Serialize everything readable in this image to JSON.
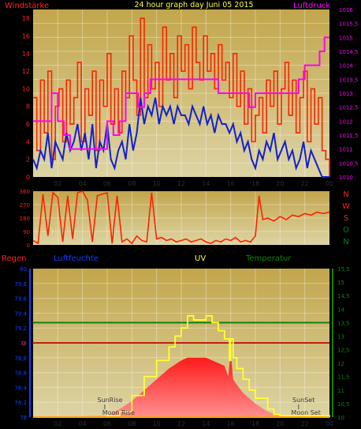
{
  "colors": {
    "background": "#000000",
    "panel_top": "#c8b060",
    "panel_bottom": "#ddd6a6",
    "wind": "#ff2200",
    "wind_avg": "#1020d0",
    "pressure": "#ff00ff",
    "red_label": "#ff2020",
    "uv": "#ffff30",
    "temperature": "#108010",
    "humidity": "#1040ff",
    "rain_line": "#c02010",
    "radiation_fill": "#ff1010",
    "text_dark": "#303030"
  },
  "chart_data": [
    {
      "id": "wind-pressure",
      "type": "line",
      "title": "24 hour graph day   Juni 05 2015",
      "left_label": "Windstärke",
      "right_label": "Luftdruck",
      "x_ticks": [
        "02",
        "04",
        "06",
        "08",
        "10",
        "12",
        "14",
        "16",
        "18",
        "20",
        "22",
        "00"
      ],
      "y_left_ticks": [
        "0",
        "2",
        "4",
        "6",
        "8",
        "10",
        "12",
        "14",
        "16",
        "18"
      ],
      "y_left_range": [
        0,
        19
      ],
      "y_right_ticks": [
        "1010",
        "1010,5",
        "1011",
        "1011,5",
        "1012",
        "1012,5",
        "1013",
        "1013,5",
        "1014",
        "1014,5",
        "1015",
        "1015,5",
        "1016"
      ],
      "y_right_range": [
        1010,
        1016
      ],
      "x_range": [
        0,
        24
      ],
      "series": [
        {
          "role": "gust",
          "color": "#ff2200",
          "x": [
            0.0,
            0.3,
            0.6,
            0.9,
            1.2,
            1.5,
            1.8,
            2.1,
            2.4,
            2.7,
            3.0,
            3.3,
            3.6,
            3.9,
            4.2,
            4.5,
            4.8,
            5.1,
            5.4,
            5.7,
            6.0,
            6.3,
            6.6,
            6.9,
            7.2,
            7.5,
            7.8,
            8.1,
            8.4,
            8.7,
            9.0,
            9.3,
            9.6,
            9.9,
            10.2,
            10.5,
            10.8,
            11.1,
            11.4,
            11.7,
            12.0,
            12.3,
            12.6,
            12.9,
            13.2,
            13.5,
            13.8,
            14.1,
            14.4,
            14.7,
            15.0,
            15.3,
            15.6,
            15.9,
            16.2,
            16.5,
            16.8,
            17.1,
            17.4,
            17.7,
            18.0,
            18.3,
            18.6,
            18.9,
            19.2,
            19.5,
            19.8,
            20.1,
            20.4,
            20.7,
            21.0,
            21.3,
            21.6,
            21.9,
            22.2,
            22.5,
            22.8,
            23.1,
            23.4,
            23.7,
            24.0
          ],
          "y": [
            9,
            3,
            11,
            5,
            12,
            2,
            8,
            10,
            4,
            11,
            6,
            9,
            13,
            4,
            10,
            7,
            12,
            3,
            11,
            8,
            14,
            6,
            10,
            5,
            12,
            9,
            16,
            11,
            7,
            18,
            9,
            15,
            10,
            13,
            8,
            17,
            11,
            14,
            9,
            16,
            12,
            15,
            10,
            17,
            13,
            11,
            16,
            12,
            14,
            10,
            15,
            11,
            13,
            9,
            14,
            8,
            12,
            6,
            10,
            4,
            7,
            9,
            5,
            11,
            8,
            12,
            6,
            10,
            13,
            7,
            11,
            5,
            9,
            12,
            4,
            10,
            6,
            9,
            3,
            2,
            0
          ]
        },
        {
          "role": "average",
          "color": "#1020d0",
          "x": [
            0.0,
            0.3,
            0.6,
            0.9,
            1.2,
            1.5,
            1.8,
            2.1,
            2.4,
            2.7,
            3.0,
            3.3,
            3.6,
            3.9,
            4.2,
            4.5,
            4.8,
            5.1,
            5.4,
            5.7,
            6.0,
            6.3,
            6.6,
            6.9,
            7.2,
            7.5,
            7.8,
            8.1,
            8.4,
            8.7,
            9.0,
            9.3,
            9.6,
            9.9,
            10.2,
            10.5,
            10.8,
            11.1,
            11.4,
            11.7,
            12.0,
            12.3,
            12.6,
            12.9,
            13.2,
            13.5,
            13.8,
            14.1,
            14.4,
            14.7,
            15.0,
            15.3,
            15.6,
            15.9,
            16.2,
            16.5,
            16.8,
            17.1,
            17.4,
            17.7,
            18.0,
            18.3,
            18.6,
            18.9,
            19.2,
            19.5,
            19.8,
            20.1,
            20.4,
            20.7,
            21.0,
            21.3,
            21.6,
            21.9,
            22.2,
            22.5,
            22.8,
            23.1,
            23.4,
            23.7,
            24.0
          ],
          "y": [
            2,
            1,
            3,
            2,
            5,
            1,
            4,
            3,
            2,
            5,
            3,
            4,
            6,
            3,
            5,
            2,
            6,
            1,
            4,
            3,
            6,
            2,
            1,
            3,
            4,
            2,
            6,
            3,
            5,
            9,
            6,
            8,
            7,
            9,
            6,
            8,
            7,
            8,
            6,
            8,
            7,
            7,
            6,
            8,
            7,
            6,
            8,
            6,
            7,
            5,
            7,
            6,
            6,
            5,
            6,
            4,
            5,
            3,
            4,
            2,
            1,
            3,
            2,
            4,
            3,
            5,
            2,
            3,
            4,
            2,
            3,
            1,
            2,
            4,
            1,
            3,
            2,
            1,
            0,
            0,
            0
          ]
        },
        {
          "role": "pressure",
          "color": "#ff00ff",
          "axis": "right",
          "x": [
            0.0,
            1.0,
            1.5,
            2.0,
            2.5,
            3.0,
            5.5,
            6.0,
            6.5,
            7.0,
            7.5,
            8.0,
            8.5,
            9.0,
            9.5,
            10.0,
            12.0,
            14.0,
            15.0,
            16.0,
            17.0,
            17.5,
            18.0,
            19.0,
            20.0,
            21.0,
            21.5,
            22.0,
            23.0,
            23.2,
            23.6,
            24.0
          ],
          "y": [
            1012.0,
            1012.0,
            1013.0,
            1012.0,
            1011.5,
            1011.0,
            1011.0,
            1012.0,
            1011.5,
            1012.0,
            1013.0,
            1013.0,
            1012.5,
            1013.0,
            1013.5,
            1013.5,
            1013.5,
            1013.5,
            1013.0,
            1013.0,
            1013.0,
            1012.5,
            1013.0,
            1013.0,
            1013.0,
            1013.0,
            1013.5,
            1014.0,
            1014.0,
            1014.5,
            1015.0,
            1015.0
          ]
        }
      ]
    },
    {
      "id": "wind-direction",
      "type": "line",
      "x_range": [
        0,
        24
      ],
      "y_ticks": [
        "0",
        "90",
        "180",
        "270",
        "360"
      ],
      "y_range": [
        0,
        360
      ],
      "direction_labels": [
        "N",
        "W",
        "S",
        "O",
        "N"
      ],
      "series": [
        {
          "role": "direction",
          "color": "#ff2200",
          "x": [
            0.0,
            0.4,
            0.8,
            1.2,
            1.6,
            2.0,
            2.4,
            2.8,
            3.2,
            3.6,
            4.0,
            4.4,
            4.8,
            5.2,
            5.6,
            6.0,
            6.4,
            6.8,
            7.2,
            7.6,
            8.0,
            8.4,
            8.8,
            9.2,
            9.6,
            10.0,
            10.4,
            10.8,
            11.2,
            11.6,
            12.0,
            12.4,
            12.8,
            13.2,
            13.6,
            14.0,
            14.4,
            14.8,
            15.2,
            15.6,
            16.0,
            16.4,
            16.8,
            17.2,
            17.6,
            18.0,
            18.3,
            18.6,
            19.0,
            19.5,
            20.0,
            20.5,
            21.0,
            21.5,
            22.0,
            22.5,
            23.0,
            23.5,
            24.0
          ],
          "y": [
            30,
            10,
            340,
            60,
            350,
            320,
            20,
            330,
            40,
            350,
            360,
            300,
            20,
            330,
            340,
            350,
            10,
            330,
            20,
            40,
            10,
            60,
            30,
            20,
            350,
            40,
            50,
            30,
            40,
            20,
            30,
            40,
            20,
            30,
            40,
            20,
            10,
            30,
            20,
            40,
            30,
            50,
            20,
            30,
            20,
            60,
            330,
            170,
            180,
            160,
            190,
            170,
            200,
            190,
            210,
            200,
            220,
            210,
            220
          ]
        }
      ]
    },
    {
      "id": "rain-humidity-uv-temp",
      "type": "area",
      "top_labels": [
        "Regen",
        "Luftfeuchte",
        "UV",
        "Temperatur"
      ],
      "x_ticks": [
        "02",
        "04",
        "06",
        "08",
        "10",
        "12",
        "14",
        "16",
        "18",
        "20",
        "22",
        "00"
      ],
      "x_range": [
        0,
        24
      ],
      "y_left_ticks": [
        "78",
        "78,2",
        "78,4",
        "78,6",
        "78,8",
        "79",
        "79,2",
        "79,4",
        "79,6",
        "79,8",
        "80"
      ],
      "y_left_range": [
        78,
        80
      ],
      "rain_zero_label": "0",
      "y_right_ticks": [
        "10",
        "10,5",
        "11",
        "11,5",
        "12",
        "12,5",
        "13",
        "13,5",
        "14",
        "14,5",
        "15",
        "15,5"
      ],
      "y_right_range": [
        10,
        15.5
      ],
      "sun_labels": {
        "sunrise": "SunRise",
        "moonrise": "Moon Rise",
        "sunset": "SunSet",
        "moonset": "Moon Set"
      },
      "series": [
        {
          "role": "rain",
          "color": "#c02010",
          "axis": "left",
          "x": [
            0,
            24
          ],
          "y": [
            79.0,
            79.0
          ]
        },
        {
          "role": "temperature",
          "color": "#108010",
          "axis": "right",
          "x": [
            0,
            24
          ],
          "y": [
            13.5,
            13.5
          ]
        },
        {
          "role": "radiation",
          "color": "#ff1010",
          "axis": "right",
          "x": [
            0.0,
            6.0,
            7.0,
            8.0,
            9.0,
            10.0,
            11.0,
            12.0,
            12.5,
            13.0,
            14.0,
            15.0,
            15.5,
            15.8,
            16.0,
            16.2,
            16.5,
            17.0,
            18.0,
            19.0,
            20.0,
            21.0,
            24.0
          ],
          "y": [
            10.0,
            10.05,
            10.3,
            10.6,
            11.0,
            11.4,
            11.8,
            12.1,
            12.2,
            12.2,
            12.2,
            12.0,
            11.9,
            11.5,
            12.4,
            11.4,
            11.2,
            10.9,
            10.5,
            10.2,
            10.05,
            10.0,
            10.0
          ]
        },
        {
          "role": "uv",
          "color": "#ffff30",
          "axis": "right",
          "x": [
            0.0,
            6.0,
            7.0,
            8.0,
            9.0,
            10.0,
            11.0,
            11.5,
            12.0,
            12.5,
            13.0,
            14.0,
            14.5,
            15.0,
            15.5,
            15.9,
            16.0,
            16.2,
            16.5,
            17.0,
            17.5,
            18.0,
            19.0,
            19.5,
            20.0,
            24.0
          ],
          "y": [
            10.0,
            10.05,
            10.2,
            10.8,
            11.5,
            12.1,
            12.6,
            13.0,
            13.3,
            13.75,
            13.6,
            13.75,
            13.5,
            13.2,
            12.9,
            12.1,
            12.9,
            12.2,
            11.8,
            11.4,
            11.0,
            10.7,
            10.3,
            10.1,
            10.05,
            10.0
          ]
        },
        {
          "role": "baseline",
          "color": "#ffa000",
          "axis": "right",
          "x": [
            0,
            24
          ],
          "y": [
            10.0,
            10.0
          ]
        }
      ]
    }
  ]
}
